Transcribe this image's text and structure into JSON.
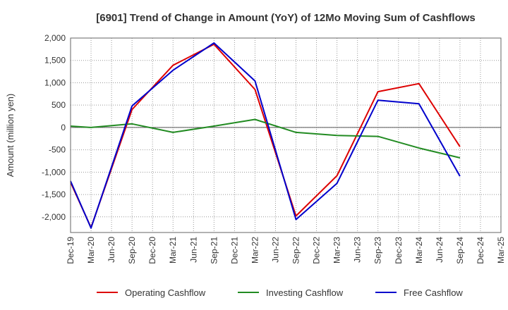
{
  "chart_data": {
    "type": "line",
    "title": "[6901]  Trend of Change in Amount (YoY) of 12Mo Moving Sum of Cashflows",
    "xlabel": "",
    "ylabel": "Amount (million yen)",
    "ylim": [
      -2350,
      2000
    ],
    "yticks": [
      2000,
      1500,
      1000,
      500,
      0,
      -500,
      -1000,
      -1500,
      -2000
    ],
    "ytick_labels": [
      "2,000",
      "1,500",
      "1,000",
      "500",
      "0",
      "-500",
      "-1,000",
      "-1,500",
      "-2,000"
    ],
    "categories": [
      "Dec-19",
      "Mar-20",
      "Jun-20",
      "Sep-20",
      "Dec-20",
      "Mar-21",
      "Jun-21",
      "Sep-21",
      "Dec-21",
      "Mar-22",
      "Jun-22",
      "Sep-22",
      "Dec-22",
      "Mar-23",
      "Jun-23",
      "Sep-23",
      "Dec-23",
      "Mar-24",
      "Jun-24",
      "Sep-24",
      "Dec-24",
      "Mar-25"
    ],
    "series": [
      {
        "name": "Operating Cashflow",
        "color": "#dd0000",
        "values": [
          -1230,
          -2240,
          null,
          400,
          null,
          1390,
          null,
          1860,
          null,
          850,
          null,
          -1980,
          null,
          -1080,
          null,
          800,
          null,
          980,
          null,
          -430,
          null,
          null
        ]
      },
      {
        "name": "Investing Cashflow",
        "color": "#228b22",
        "values": [
          30,
          0,
          null,
          80,
          null,
          -110,
          null,
          30,
          null,
          180,
          null,
          -110,
          null,
          -180,
          null,
          -200,
          null,
          -460,
          null,
          -680,
          null,
          null
        ]
      },
      {
        "name": "Free Cashflow",
        "color": "#0000cc",
        "values": [
          -1200,
          -2250,
          null,
          480,
          null,
          1280,
          null,
          1890,
          null,
          1040,
          null,
          -2060,
          null,
          -1250,
          null,
          610,
          null,
          530,
          null,
          -1090,
          null,
          null
        ]
      }
    ],
    "grid": true,
    "legend": "bottom"
  }
}
